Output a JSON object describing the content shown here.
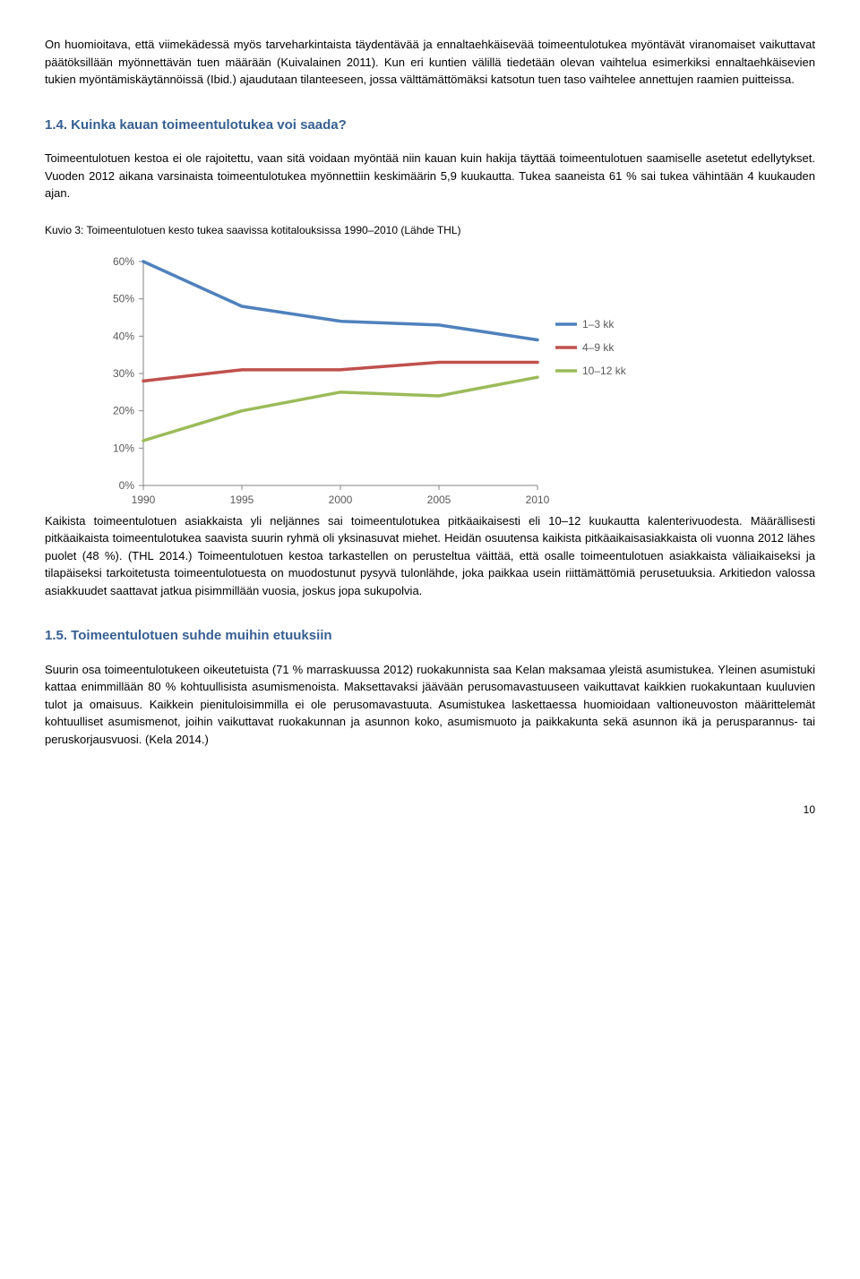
{
  "para1": "On huomioitava, että viimekädessä myös tarveharkintaista täydentävää ja ennaltaehkäisevää toimeentulotukea myöntävät viranomaiset vaikuttavat päätöksillään myönnettävän tuen määrään (Kuivalainen 2011). Kun eri kuntien välillä tiedetään olevan vaihtelua esimerkiksi ennaltaehkäisevien tukien myöntämiskäytännöissä (Ibid.) ajaudutaan tilanteeseen, jossa välttämättömäksi katsotun tuen taso vaihtelee annettujen raamien puitteissa.",
  "h1": "1.4. Kuinka kauan toimeentulotukea voi saada?",
  "para2": "Toimeentulotuen kestoa ei ole rajoitettu, vaan sitä voidaan myöntää niin kauan kuin hakija täyttää toimeentulotuen saamiselle asetetut edellytykset. Vuoden 2012 aikana varsinaista toimeentulotukea myönnettiin keskimäärin 5,9 kuukautta. Tukea saaneista 61 % sai tukea vähintään 4 kuukauden ajan.",
  "kuvio": "Kuvio 3:  Toimeentulotuen kesto tukea saavissa kotitalouksissa 1990–2010 (Lähde THL)",
  "chart": {
    "type": "line",
    "x_labels": [
      "1990",
      "1995",
      "2000",
      "2005",
      "2010"
    ],
    "y_labels": [
      "0%",
      "10%",
      "20%",
      "30%",
      "40%",
      "50%",
      "60%"
    ],
    "y_min": 0,
    "y_max": 60,
    "y_step": 10,
    "series": [
      {
        "name": "1–3 kk",
        "color": "#4f81bd",
        "values": [
          60,
          48,
          44,
          43,
          39
        ]
      },
      {
        "name": "4–9 kk",
        "color": "#c0504d",
        "values": [
          28,
          31,
          31,
          33,
          33
        ]
      },
      {
        "name": "10–12 kk",
        "color": "#9bbb59",
        "values": [
          12,
          20,
          25,
          24,
          29
        ]
      }
    ],
    "line_width": 3.5,
    "plot_bg": "#ffffff",
    "axis_color": "#868686",
    "label_color": "#595959",
    "label_fontsize": 12
  },
  "para3": "Kaikista toimeentulotuen asiakkaista yli neljännes sai toimeentulotukea pitkäaikaisesti eli 10–12 kuukautta kalenterivuodesta. Määrällisesti pitkäaikaista toimeentulotukea saavista suurin ryhmä oli yksinasuvat miehet. Heidän osuutensa kaikista pitkäaikaisasiakkaista oli vuonna 2012 lähes puolet (48 %). (THL 2014.) Toimeentulotuen kestoa tarkastellen on perusteltua väittää, että osalle toimeentulotuen asiakkaista väliaikaiseksi ja tilapäiseksi tarkoitetusta toimeentulotuesta on muodostunut pysyvä tulonlähde, joka paikkaa usein riittämättömiä perusetuuksia. Arkitiedon valossa asiakkuudet saattavat jatkua pisimmillään vuosia, joskus jopa sukupolvia.",
  "h2": "1.5. Toimeentulotuen suhde muihin etuuksiin",
  "para4": "Suurin osa toimeentulotukeen oikeutetuista (71 % marraskuussa 2012) ruokakunnista saa Kelan maksamaa yleistä asumistukea. Yleinen asumistuki kattaa enimmillään 80 % kohtuullisista asumismenoista. Maksettavaksi jäävään perusomavastuuseen vaikuttavat kaikkien ruokakuntaan kuuluvien tulot ja omaisuus. Kaikkein pienituloisimmilla ei ole perusomavastuuta. Asumistukea laskettaessa huomioidaan valtioneuvoston määrittelemät kohtuulliset asumismenot, joihin vaikuttavat ruokakunnan ja asunnon koko, asumismuoto ja paikkakunta sekä asunnon ikä ja perusparannus- tai peruskorjausvuosi. (Kela 2014.)",
  "pagenum": "10"
}
